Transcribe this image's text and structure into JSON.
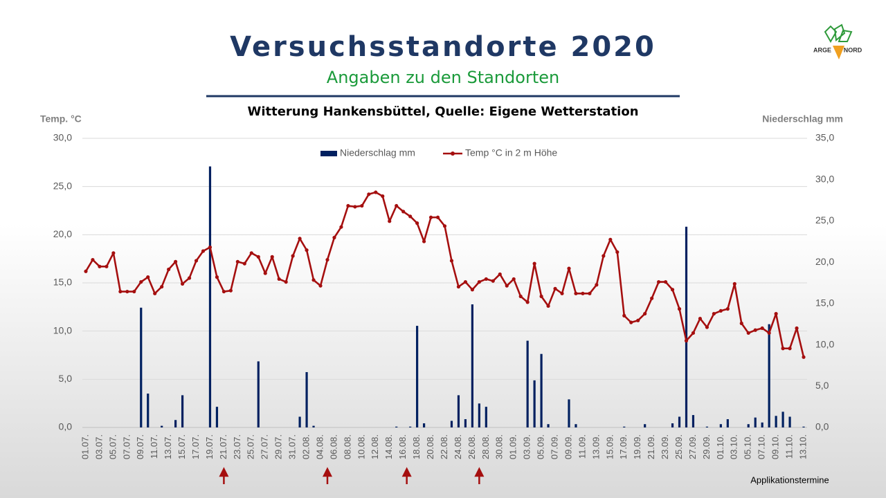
{
  "title": "Versuchsstandorte 2020",
  "subtitle": "Angaben zu den Standorten",
  "logo": {
    "left": "ARGE",
    "right": "NORD"
  },
  "chart_data": {
    "type": "combo",
    "title": "Witterung Hankensbüttel, Quelle: Eigene Wetterstation",
    "y_label": "Temp. °C",
    "y2_label": "Niederschlag mm",
    "categories": [
      "01.07.",
      null,
      "03.07.",
      null,
      "05.07.",
      null,
      "07.07.",
      null,
      "09.07.",
      null,
      "11.07.",
      null,
      "13.07.",
      null,
      "15.07.",
      null,
      "17.07.",
      null,
      "19.07.",
      null,
      "21.07.",
      null,
      "23.07.",
      null,
      "25.07.",
      null,
      "27.07.",
      null,
      "29.07.",
      null,
      "31.07.",
      null,
      "02.08.",
      null,
      "04.08.",
      null,
      "06.08.",
      null,
      "08.08.",
      null,
      "10.08.",
      null,
      "12.08.",
      null,
      "14.08.",
      null,
      "16.08.",
      null,
      "18.08.",
      null,
      "20.08.",
      null,
      "22.08.",
      null,
      "24.08.",
      null,
      "26.08.",
      null,
      "28.08.",
      null,
      "30.08.",
      null,
      "01.09.",
      null,
      "03.09.",
      null,
      "05.09.",
      null,
      "07.09.",
      null,
      "09.09.",
      null,
      "11.09.",
      null,
      "13.09.",
      null,
      "15.09.",
      null,
      "17.09.",
      null,
      "19.09.",
      null,
      "21.09.",
      null,
      "23.09.",
      null,
      "25.09.",
      null,
      "27.09.",
      null,
      "29.09.",
      null,
      "01.10.",
      null,
      "03.10.",
      null,
      "05.10.",
      null,
      "07.10.",
      null,
      "09.10.",
      null,
      "11.10.",
      null,
      "13.10."
    ],
    "series": [
      {
        "name": "Niederschlag mm",
        "type": "bar",
        "axis": "y2",
        "color": "#002060",
        "values": [
          0,
          0,
          0,
          0,
          0,
          0,
          0,
          0,
          14.5,
          4.1,
          0,
          0.2,
          0,
          0.9,
          3.9,
          0,
          0,
          0,
          31.6,
          2.5,
          0,
          0,
          0,
          0,
          0,
          8.0,
          0,
          0,
          0,
          0,
          0,
          1.3,
          6.7,
          0.2,
          0,
          0,
          0,
          0,
          0,
          0,
          0,
          0,
          0,
          0,
          0,
          0.1,
          0,
          0.1,
          12.3,
          0.5,
          0,
          0,
          0,
          0.8,
          3.9,
          1.0,
          14.9,
          2.9,
          2.5,
          0,
          0,
          0,
          0,
          0,
          10.5,
          5.7,
          8.9,
          0.4,
          0,
          0,
          3.4,
          0.4,
          0,
          0,
          0,
          0,
          0,
          0,
          0.1,
          0,
          0,
          0.4,
          0,
          0,
          0,
          0.5,
          1.3,
          24.3,
          1.5,
          0,
          0.1,
          0,
          0.4,
          1.0,
          0,
          0,
          0.4,
          1.2,
          0.6,
          12.5,
          1.4,
          1.9,
          1.3,
          0,
          0.1
        ]
      },
      {
        "name": "Temp °C in 2 m Höhe",
        "type": "line",
        "axis": "y",
        "color": "#a50f0f",
        "values": [
          16.2,
          17.4,
          16.7,
          16.7,
          18.1,
          14.1,
          14.1,
          14.1,
          15.1,
          15.6,
          13.9,
          14.6,
          16.4,
          17.2,
          14.9,
          15.5,
          17.3,
          18.3,
          18.7,
          15.6,
          14.1,
          14.2,
          17.2,
          17.0,
          18.1,
          17.7,
          16.0,
          17.7,
          15.4,
          15.1,
          17.8,
          19.6,
          18.4,
          15.3,
          14.7,
          17.4,
          19.7,
          20.8,
          23.0,
          22.9,
          23.0,
          24.2,
          24.4,
          24.0,
          21.4,
          23.0,
          22.4,
          21.9,
          21.2,
          19.3,
          21.8,
          21.8,
          20.9,
          17.3,
          14.6,
          15.1,
          14.3,
          15.1,
          15.4,
          15.2,
          15.9,
          14.7,
          15.4,
          13.6,
          13.0,
          17.0,
          13.6,
          12.6,
          14.4,
          13.9,
          16.5,
          13.9,
          13.9,
          13.9,
          14.8,
          17.8,
          19.5,
          18.2,
          11.6,
          10.9,
          11.1,
          11.8,
          13.4,
          15.1,
          15.1,
          14.3,
          12.3,
          9.0,
          9.8,
          11.3,
          10.4,
          11.8,
          12.1,
          12.3,
          14.9,
          10.8,
          9.8,
          10.1,
          10.3,
          9.8,
          11.8,
          8.2,
          8.2,
          10.3,
          7.3
        ]
      }
    ],
    "ylim": [
      0,
      30
    ],
    "yticks": [
      {
        "value": 0,
        "label": "0,0"
      },
      {
        "value": 5,
        "label": "5,0"
      },
      {
        "value": 10,
        "label": "10,0"
      },
      {
        "value": 15,
        "label": "15,0"
      },
      {
        "value": 20,
        "label": "20,0"
      },
      {
        "value": 25,
        "label": "25,0"
      },
      {
        "value": 30,
        "label": "30,0"
      }
    ],
    "y2lim": [
      0,
      35
    ],
    "y2ticks": [
      {
        "value": 0,
        "label": "0,0"
      },
      {
        "value": 5,
        "label": "5,0"
      },
      {
        "value": 10,
        "label": "10,0"
      },
      {
        "value": 15,
        "label": "15,0"
      },
      {
        "value": 20,
        "label": "20,0"
      },
      {
        "value": 25,
        "label": "25,0"
      },
      {
        "value": 30,
        "label": "30,0"
      },
      {
        "value": 35,
        "label": "35,0"
      }
    ],
    "grid": true,
    "legend": "top",
    "annotation": {
      "label": "Applikationstermine",
      "positions": [
        20,
        35,
        46.5,
        57
      ],
      "color": "#a50f0f"
    }
  }
}
